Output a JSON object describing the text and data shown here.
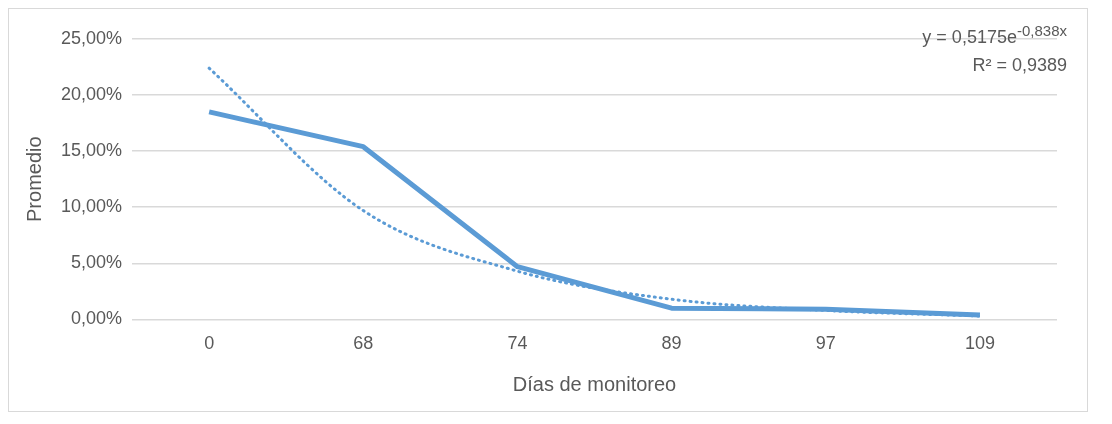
{
  "chart_data": {
    "type": "line",
    "xlabel": "Días de monitoreo",
    "ylabel": "Promedio",
    "categories": [
      "0",
      "68",
      "74",
      "89",
      "97",
      "109"
    ],
    "series": [
      {
        "color": "#5b9bd5",
        "values": [
          18.5,
          15.4,
          4.7,
          1.0,
          0.9,
          0.4
        ],
        "line_style": "solid"
      },
      {
        "type": "line",
        "color": "#5b9bd5",
        "values": [
          22.4,
          9.7,
          4.3,
          1.8,
          0.8,
          0.3
        ],
        "line_style": "dotted"
      }
    ],
    "ylim": [
      0,
      25
    ],
    "yticks": [
      {
        "value": 0,
        "label": "0,00%"
      },
      {
        "value": 5,
        "label": "5,00%"
      },
      {
        "value": 10,
        "label": "10,00%"
      },
      {
        "value": 15,
        "label": "15,00%"
      },
      {
        "value": 20,
        "label": "20,00%"
      },
      {
        "value": 25,
        "label": "25,00%"
      }
    ],
    "grid": "y",
    "legend": false,
    "marker": "none",
    "annotations": [
      "y = 0,5175e$^{-0,838x}$",
      "R² = 0,9389"
    ]
  }
}
